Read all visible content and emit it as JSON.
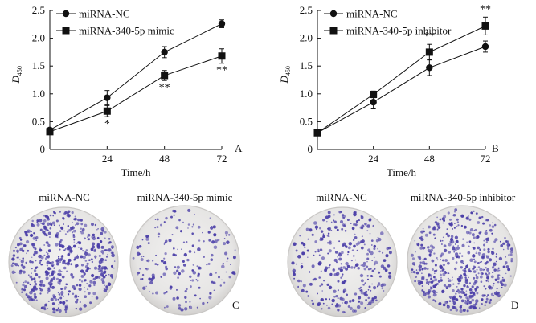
{
  "panels": {
    "A": {
      "letter": "A"
    },
    "B": {
      "letter": "B"
    },
    "C": {
      "letter": "C",
      "title_left": "miRNA-NC",
      "title_right": "miRNA-340-5p mimic"
    },
    "D": {
      "letter": "D",
      "title_left": "miRNA-NC",
      "title_right": "miRNA-340-5p inhibitor"
    }
  },
  "colors": {
    "stain": "#4b3fa8",
    "dish": "#ecebea",
    "dish_rim": "#c9c7c5",
    "line": "#111111"
  },
  "chart_data": [
    {
      "id": "A",
      "type": "line",
      "x": [
        0,
        24,
        48,
        72
      ],
      "xticks": [
        "24",
        "48",
        "72"
      ],
      "xlabel": "Time/h",
      "ylabel": "D",
      "ylabel_sub": "450",
      "ylim": [
        0,
        2.5
      ],
      "yticks": [
        "0",
        "0.5",
        "1.0",
        "1.5",
        "2.0",
        "2.5"
      ],
      "series": [
        {
          "name": "miRNA-NC",
          "marker": "circle",
          "values": [
            0.35,
            0.93,
            1.75,
            2.26
          ],
          "errors": [
            0.03,
            0.13,
            0.1,
            0.07
          ]
        },
        {
          "name": "miRNA-340-5p mimic",
          "marker": "square",
          "values": [
            0.32,
            0.69,
            1.33,
            1.68
          ],
          "errors": [
            0.03,
            0.1,
            0.09,
            0.13
          ]
        }
      ],
      "annotations": [
        {
          "x": 24,
          "text": "*"
        },
        {
          "x": 48,
          "text": "**"
        },
        {
          "x": 72,
          "text": "**"
        }
      ]
    },
    {
      "id": "B",
      "type": "line",
      "x": [
        0,
        24,
        48,
        72
      ],
      "xticks": [
        "24",
        "48",
        "72"
      ],
      "xlabel": "Time/h",
      "ylabel": "D",
      "ylabel_sub": "450",
      "ylim": [
        0,
        2.5
      ],
      "yticks": [
        "0",
        "0.5",
        "1.0",
        "1.5",
        "2.0",
        "2.5"
      ],
      "series": [
        {
          "name": "miRNA-NC",
          "marker": "circle",
          "values": [
            0.3,
            0.85,
            1.47,
            1.85
          ],
          "errors": [
            0.03,
            0.12,
            0.14,
            0.1
          ]
        },
        {
          "name": "miRNA-340-5p inhibitor",
          "marker": "square",
          "values": [
            0.3,
            0.99,
            1.75,
            2.22
          ],
          "errors": [
            0.03,
            0.06,
            0.14,
            0.16
          ]
        }
      ],
      "annotations": [
        {
          "x": 48,
          "text": "**"
        },
        {
          "x": 72,
          "text": "**"
        }
      ]
    }
  ]
}
